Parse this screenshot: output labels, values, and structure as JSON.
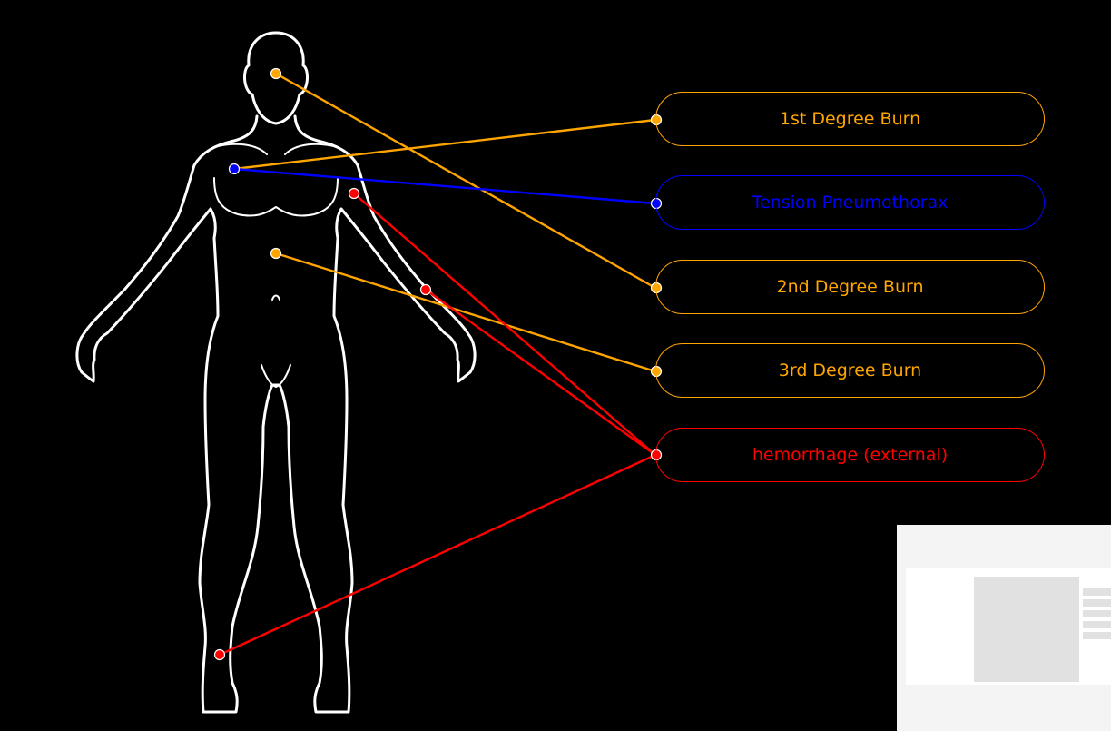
{
  "colors": {
    "background": "#000000",
    "outline": "#ffffff",
    "burn": "#ffa500",
    "pneumothorax": "#0000ff",
    "hemorrhage": "#ff0000"
  },
  "injuries": [
    {
      "label": "1st Degree Burn",
      "color": "#ffa500"
    },
    {
      "label": "Tension Pneumothorax",
      "color": "#0000ff"
    },
    {
      "label": "2nd Degree Burn",
      "color": "#ffa500"
    },
    {
      "label": "3rd Degree Burn",
      "color": "#ffa500"
    },
    {
      "label": "hemorrhage (external)",
      "color": "#ff0000"
    }
  ],
  "markers": [
    {
      "injury": 0,
      "site": "left chest"
    },
    {
      "injury": 1,
      "site": "left chest"
    },
    {
      "injury": 2,
      "site": "head"
    },
    {
      "injury": 3,
      "site": "abdomen"
    },
    {
      "injury": 4,
      "site": "right shoulder"
    },
    {
      "injury": 4,
      "site": "right upper arm"
    },
    {
      "injury": 4,
      "site": "right ankle"
    }
  ],
  "thumbnail": {
    "icon": "image-placeholder-icon"
  }
}
